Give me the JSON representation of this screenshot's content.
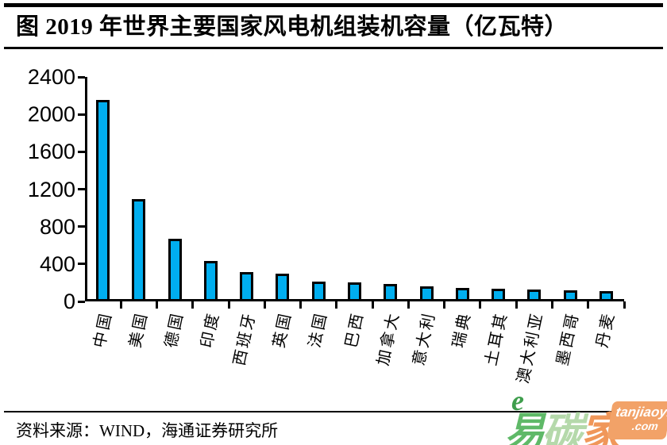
{
  "title": "图  2019 年世界主要国家风电机组装机容量（亿瓦特）",
  "chart_data": {
    "type": "bar",
    "title": "图  2019 年世界主要国家风电机组装机容量（亿瓦特）",
    "categories": [
      "中国",
      "美国",
      "德国",
      "印度",
      "西班牙",
      "英国",
      "法国",
      "巴西",
      "加拿大",
      "意大利",
      "瑞典",
      "土耳其",
      "澳大利亚",
      "墨西哥",
      "丹麦"
    ],
    "values": [
      2100,
      1040,
      615,
      385,
      265,
      245,
      165,
      155,
      138,
      108,
      92,
      82,
      76,
      66,
      62
    ],
    "xlabel": "",
    "ylabel": "",
    "ylim": [
      0,
      2400
    ],
    "yticks": [
      0,
      400,
      800,
      1200,
      1600,
      2000,
      2400
    ],
    "grid": false,
    "legend": "none",
    "bar_color": "#00AEEF",
    "bar_border_color": "#000000",
    "axis_color": "#000000"
  },
  "source": {
    "text": "资料来源：WIND，海通证券研究所"
  },
  "watermark": {
    "e_swash": "e",
    "char1": "易",
    "char2": "碳",
    "char3": "家",
    "box_line1": "tanjiaoyi",
    "box_line2": ".com",
    "color_e": "#3f9e4d",
    "color_char1": "#5fb968",
    "color_char2": "#b5d9ab",
    "color_char3": "#f0975a",
    "color_box": "#f2a268"
  }
}
